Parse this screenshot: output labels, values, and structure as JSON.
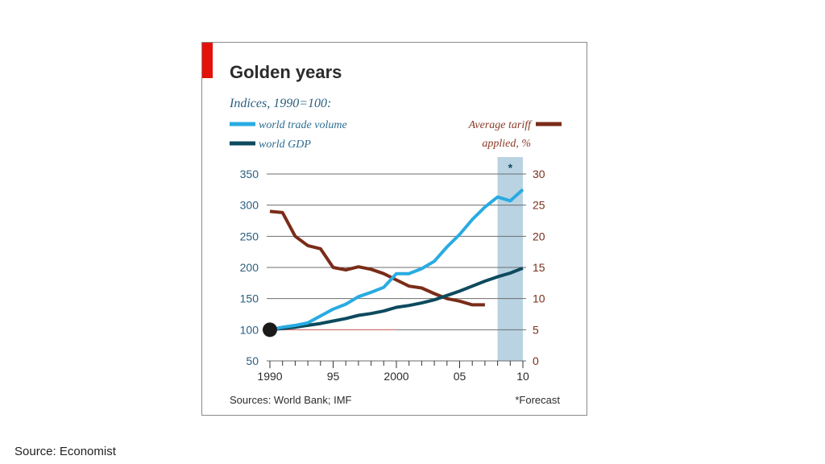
{
  "page": {
    "caption": "Source: Economist"
  },
  "colors": {
    "trade": "#29abe2",
    "gdp": "#0d4a5e",
    "tariff": "#7a2c18",
    "accent_bar": "#e3120b",
    "forecast_band": "#b9d3e2",
    "grid": "#6d6d6d",
    "baseline": "#e06b6b"
  },
  "chart_data": {
    "type": "line",
    "title": "Golden years",
    "subtitle": "Indices, 1990=100:",
    "right_axis_title_line1": "Average tariff",
    "right_axis_title_line2": "applied, %",
    "forecast_marker": "*",
    "footer_source": "Sources: World Bank; IMF",
    "footer_note": "*Forecast",
    "xlim": [
      1990,
      2010
    ],
    "ylim_left": [
      50,
      350
    ],
    "ylim_right": [
      0,
      30
    ],
    "yticks_left": [
      50,
      100,
      150,
      200,
      250,
      300,
      350
    ],
    "yticks_left_labels": [
      "50",
      "100",
      "150",
      "200",
      "250",
      "300",
      "350"
    ],
    "yticks_right": [
      0,
      5,
      10,
      15,
      20,
      25,
      30
    ],
    "yticks_right_labels": [
      "0",
      "5",
      "10",
      "15",
      "20",
      "25",
      "30"
    ],
    "xticks": [
      1990,
      1995,
      2000,
      2005,
      2010
    ],
    "xtick_labels": [
      "1990",
      "95",
      "2000",
      "05",
      "10"
    ],
    "forecast_range": [
      2008,
      2010
    ],
    "series": [
      {
        "name": "world trade volume",
        "axis": "left",
        "x": [
          1990,
          1991,
          1992,
          1993,
          1994,
          1995,
          1996,
          1997,
          1998,
          1999,
          2000,
          2001,
          2002,
          2003,
          2004,
          2005,
          2006,
          2007,
          2008,
          2009,
          2010
        ],
        "values": [
          100,
          104,
          107,
          111,
          122,
          133,
          141,
          153,
          160,
          168,
          190,
          190,
          198,
          210,
          233,
          253,
          277,
          297,
          313,
          307,
          325
        ]
      },
      {
        "name": "world GDP",
        "axis": "left",
        "x": [
          1990,
          1991,
          1992,
          1993,
          1994,
          1995,
          1996,
          1997,
          1998,
          1999,
          2000,
          2001,
          2002,
          2003,
          2004,
          2005,
          2006,
          2007,
          2008,
          2009,
          2010
        ],
        "values": [
          100,
          102,
          104,
          107,
          110,
          114,
          118,
          123,
          126,
          130,
          136,
          139,
          143,
          148,
          155,
          162,
          170,
          178,
          185,
          191,
          199
        ]
      },
      {
        "name": "Average tariff applied, %",
        "axis": "right",
        "x": [
          1990,
          1991,
          1992,
          1993,
          1994,
          1995,
          1996,
          1997,
          1998,
          1999,
          2000,
          2001,
          2002,
          2003,
          2004,
          2005,
          2006,
          2007
        ],
        "values": [
          24,
          23.8,
          20,
          18.5,
          18,
          15,
          14.6,
          15.1,
          14.7,
          14,
          13,
          12,
          11.7,
          10.8,
          10,
          9.6,
          9,
          9
        ]
      }
    ],
    "start_marker": {
      "x": 1990,
      "value": 100
    },
    "baseline": {
      "value": 100,
      "x_range": [
        1990,
        2000
      ]
    }
  }
}
